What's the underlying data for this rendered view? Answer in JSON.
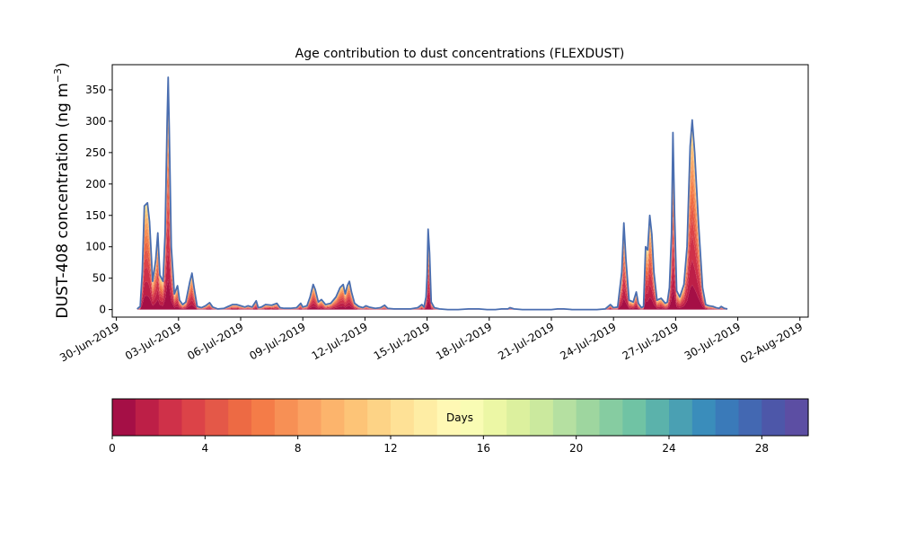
{
  "chart_data": {
    "type": "area",
    "title": "Age contribution to dust concentrations (FLEXDUST)",
    "ylabel_main": "DUST-408 concentration (ng m",
    "ylabel_unit_sup": "−3",
    "ylabel_close": ")",
    "ylim": [
      -12,
      390
    ],
    "xlim_days": [
      -0.2,
      33.4
    ],
    "yticks": [
      {
        "value": 0,
        "label": "0"
      },
      {
        "value": 50,
        "label": "50"
      },
      {
        "value": 100,
        "label": "100"
      },
      {
        "value": 150,
        "label": "150"
      },
      {
        "value": 200,
        "label": "200"
      },
      {
        "value": 250,
        "label": "250"
      },
      {
        "value": 300,
        "label": "300"
      },
      {
        "value": 350,
        "label": "350"
      }
    ],
    "xticks": [
      {
        "day": 0,
        "label": "30-Jun-2019"
      },
      {
        "day": 3,
        "label": "03-Jul-2019"
      },
      {
        "day": 6,
        "label": "06-Jul-2019"
      },
      {
        "day": 9,
        "label": "09-Jul-2019"
      },
      {
        "day": 12,
        "label": "12-Jul-2019"
      },
      {
        "day": 15,
        "label": "15-Jul-2019"
      },
      {
        "day": 18,
        "label": "18-Jul-2019"
      },
      {
        "day": 21,
        "label": "21-Jul-2019"
      },
      {
        "day": 24,
        "label": "24-Jul-2019"
      },
      {
        "day": 27,
        "label": "27-Jul-2019"
      },
      {
        "day": 30,
        "label": "30-Jul-2019"
      },
      {
        "day": 33,
        "label": "02-Aug-2019"
      }
    ],
    "total_series": [
      [
        1.0,
        1
      ],
      [
        1.15,
        5
      ],
      [
        1.25,
        60
      ],
      [
        1.35,
        165
      ],
      [
        1.5,
        170
      ],
      [
        1.6,
        140
      ],
      [
        1.75,
        45
      ],
      [
        1.9,
        80
      ],
      [
        2.0,
        122
      ],
      [
        2.1,
        55
      ],
      [
        2.25,
        45
      ],
      [
        2.35,
        120
      ],
      [
        2.45,
        300
      ],
      [
        2.5,
        370
      ],
      [
        2.55,
        290
      ],
      [
        2.65,
        100
      ],
      [
        2.8,
        25
      ],
      [
        2.95,
        38
      ],
      [
        3.05,
        15
      ],
      [
        3.2,
        8
      ],
      [
        3.35,
        12
      ],
      [
        3.55,
        45
      ],
      [
        3.65,
        58
      ],
      [
        3.75,
        35
      ],
      [
        3.9,
        5
      ],
      [
        4.1,
        3
      ],
      [
        4.3,
        6
      ],
      [
        4.5,
        11
      ],
      [
        4.65,
        4
      ],
      [
        4.9,
        1
      ],
      [
        5.2,
        2
      ],
      [
        5.4,
        5
      ],
      [
        5.6,
        8
      ],
      [
        5.8,
        8
      ],
      [
        6.0,
        6
      ],
      [
        6.2,
        4
      ],
      [
        6.35,
        6
      ],
      [
        6.55,
        4
      ],
      [
        6.75,
        14
      ],
      [
        6.85,
        3
      ],
      [
        7.0,
        4
      ],
      [
        7.2,
        8
      ],
      [
        7.5,
        7
      ],
      [
        7.75,
        10
      ],
      [
        7.9,
        3
      ],
      [
        8.1,
        2
      ],
      [
        8.4,
        2
      ],
      [
        8.7,
        3
      ],
      [
        8.9,
        10
      ],
      [
        9.0,
        4
      ],
      [
        9.2,
        6
      ],
      [
        9.35,
        20
      ],
      [
        9.5,
        40
      ],
      [
        9.6,
        32
      ],
      [
        9.75,
        12
      ],
      [
        9.9,
        16
      ],
      [
        10.1,
        8
      ],
      [
        10.35,
        10
      ],
      [
        10.6,
        20
      ],
      [
        10.8,
        35
      ],
      [
        10.95,
        40
      ],
      [
        11.05,
        25
      ],
      [
        11.15,
        38
      ],
      [
        11.25,
        45
      ],
      [
        11.35,
        28
      ],
      [
        11.5,
        10
      ],
      [
        11.7,
        5
      ],
      [
        11.9,
        3
      ],
      [
        12.05,
        6
      ],
      [
        12.2,
        4
      ],
      [
        12.5,
        2
      ],
      [
        12.75,
        3
      ],
      [
        12.95,
        7
      ],
      [
        13.1,
        2
      ],
      [
        13.4,
        1
      ],
      [
        13.8,
        1
      ],
      [
        14.2,
        1
      ],
      [
        14.55,
        3
      ],
      [
        14.75,
        8
      ],
      [
        14.85,
        4
      ],
      [
        14.95,
        20
      ],
      [
        15.0,
        55
      ],
      [
        15.05,
        128
      ],
      [
        15.12,
        90
      ],
      [
        15.2,
        12
      ],
      [
        15.35,
        3
      ],
      [
        15.6,
        1
      ],
      [
        16.0,
        0
      ],
      [
        16.5,
        0
      ],
      [
        17.0,
        1
      ],
      [
        17.5,
        1
      ],
      [
        17.9,
        0
      ],
      [
        18.3,
        0
      ],
      [
        18.6,
        1
      ],
      [
        18.9,
        1
      ],
      [
        19.0,
        3
      ],
      [
        19.2,
        1
      ],
      [
        19.6,
        0
      ],
      [
        20.0,
        0
      ],
      [
        20.5,
        0
      ],
      [
        21.0,
        0
      ],
      [
        21.3,
        1
      ],
      [
        21.6,
        1
      ],
      [
        22.0,
        0
      ],
      [
        22.6,
        0
      ],
      [
        23.2,
        0
      ],
      [
        23.6,
        1
      ],
      [
        23.85,
        8
      ],
      [
        24.0,
        3
      ],
      [
        24.2,
        4
      ],
      [
        24.4,
        60
      ],
      [
        24.5,
        138
      ],
      [
        24.6,
        80
      ],
      [
        24.75,
        15
      ],
      [
        24.95,
        12
      ],
      [
        25.1,
        28
      ],
      [
        25.2,
        10
      ],
      [
        25.35,
        3
      ],
      [
        25.45,
        5
      ],
      [
        25.55,
        100
      ],
      [
        25.65,
        95
      ],
      [
        25.75,
        150
      ],
      [
        25.85,
        120
      ],
      [
        25.95,
        60
      ],
      [
        26.1,
        15
      ],
      [
        26.3,
        18
      ],
      [
        26.5,
        10
      ],
      [
        26.6,
        12
      ],
      [
        26.7,
        35
      ],
      [
        26.8,
        120
      ],
      [
        26.87,
        282
      ],
      [
        26.95,
        150
      ],
      [
        27.05,
        30
      ],
      [
        27.2,
        20
      ],
      [
        27.4,
        40
      ],
      [
        27.55,
        100
      ],
      [
        27.7,
        260
      ],
      [
        27.8,
        302
      ],
      [
        27.92,
        250
      ],
      [
        28.1,
        140
      ],
      [
        28.3,
        35
      ],
      [
        28.45,
        8
      ],
      [
        28.6,
        6
      ],
      [
        28.8,
        5
      ],
      [
        28.95,
        3
      ],
      [
        29.1,
        2
      ],
      [
        29.2,
        5
      ],
      [
        29.35,
        2
      ],
      [
        29.5,
        1
      ]
    ],
    "colorbar": {
      "label": "Days",
      "min": 0,
      "max": 30,
      "ticks": [
        {
          "value": 0,
          "label": "0"
        },
        {
          "value": 4,
          "label": "4"
        },
        {
          "value": 8,
          "label": "8"
        },
        {
          "value": 12,
          "label": "12"
        },
        {
          "value": 16,
          "label": "16"
        },
        {
          "value": 20,
          "label": "20"
        },
        {
          "value": 24,
          "label": "24"
        },
        {
          "value": 28,
          "label": "28"
        }
      ],
      "colors": [
        "#a50f46",
        "#bd1f47",
        "#cf3149",
        "#dc4348",
        "#e45848",
        "#ed6a44",
        "#f47c48",
        "#f79055",
        "#faa262",
        "#fcb46c",
        "#fdc477",
        "#fdd386",
        "#fee196",
        "#feeda4",
        "#fff8b4",
        "#f9fcb4",
        "#ecf7a5",
        "#dcf09e",
        "#cbe99e",
        "#b5e0a1",
        "#9ed69f",
        "#86cca1",
        "#70c3a4",
        "#5bb2ab",
        "#4aa0b3",
        "#3a8dbb",
        "#3a7ab9",
        "#4368b2",
        "#4d57a9",
        "#5c4ea3"
      ]
    }
  }
}
